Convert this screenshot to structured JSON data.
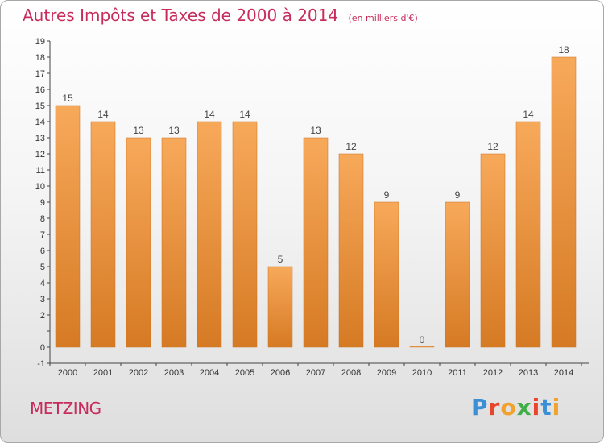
{
  "header": {
    "title": "Autres Impôts et Taxes de 2000 à 2014",
    "subtitle": "(en milliers d'€)"
  },
  "footer": {
    "commune": "METZING",
    "logo_text": "Proxiti",
    "logo_colors": [
      "#3a8fd6",
      "#e8452c",
      "#f0a22c",
      "#3fae49",
      "#e8452c",
      "#3a8fd6",
      "#f0a22c"
    ]
  },
  "colors": {
    "bar_light": "#f7a95a",
    "bar_dark": "#d67a24",
    "title": "#c72c5c",
    "axis": "#444444"
  },
  "chart_data": {
    "type": "bar",
    "categories": [
      "2000",
      "2001",
      "2002",
      "2003",
      "2004",
      "2005",
      "2006",
      "2007",
      "2008",
      "2009",
      "2010",
      "2011",
      "2012",
      "2013",
      "2014"
    ],
    "values": [
      15,
      14,
      13,
      13,
      14,
      14,
      5,
      13,
      12,
      9,
      0,
      9,
      12,
      14,
      18
    ],
    "data_labels": [
      "15",
      "14",
      "13",
      "13",
      "14",
      "14",
      "5",
      "13",
      "12",
      "9",
      "0",
      "9",
      "12",
      "14",
      "18"
    ],
    "y_ticks": [
      "-1",
      "0",
      "",
      "2",
      "3",
      "4",
      "5",
      "6",
      "7",
      "8",
      "9",
      "10",
      "11",
      "12",
      "13",
      "14",
      "15",
      "16",
      "17",
      "18",
      "19"
    ],
    "ylim": [
      -1,
      19
    ],
    "grid": false
  }
}
